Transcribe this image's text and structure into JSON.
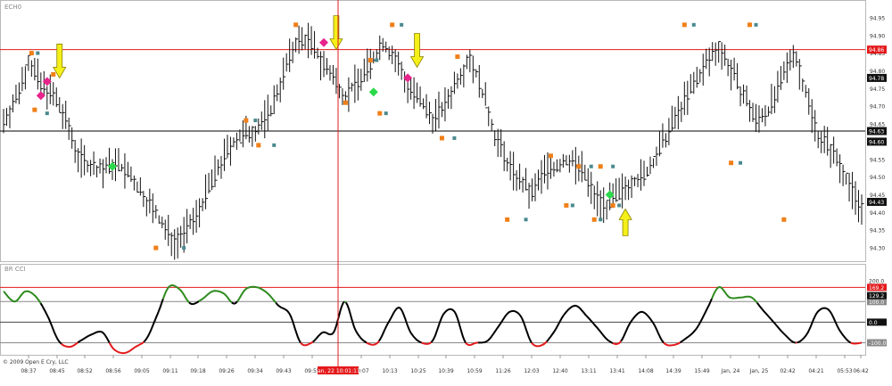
{
  "chart_data": [
    {
      "type": "bar",
      "title": "ECH0",
      "ylim": [
        94.27,
        94.99
      ],
      "y_ticks": [
        94.95,
        94.9,
        94.85,
        94.8,
        94.75,
        94.7,
        94.65,
        94.6,
        94.55,
        94.5,
        94.45,
        94.4,
        94.35,
        94.3
      ],
      "price_labels": [
        {
          "text": "94.86",
          "value": 94.86,
          "style": "red"
        },
        {
          "text": "94.78",
          "value": 94.78,
          "style": "dark"
        },
        {
          "text": "94.63",
          "value": 94.63,
          "style": "dark"
        },
        {
          "text": "94.60",
          "value": 94.6,
          "style": "dark"
        },
        {
          "text": "94.43",
          "value": 94.43,
          "style": "dark"
        }
      ],
      "horizontal_lines": [
        {
          "value": 94.86,
          "color": "#e41a1c"
        },
        {
          "value": 94.63,
          "color": "#000000"
        }
      ],
      "marks_note": "Price bars and marker events are rendered from the series below.",
      "anchors": [
        [
          0,
          94.66
        ],
        [
          4,
          94.72
        ],
        [
          8,
          94.83
        ],
        [
          12,
          94.76
        ],
        [
          16,
          94.73
        ],
        [
          20,
          94.66
        ],
        [
          24,
          94.56
        ],
        [
          28,
          94.53
        ],
        [
          32,
          94.52
        ],
        [
          36,
          94.54
        ],
        [
          40,
          94.51
        ],
        [
          44,
          94.46
        ],
        [
          48,
          94.41
        ],
        [
          52,
          94.35
        ],
        [
          55,
          94.32
        ],
        [
          58,
          94.34
        ],
        [
          62,
          94.39
        ],
        [
          66,
          94.47
        ],
        [
          70,
          94.54
        ],
        [
          74,
          94.6
        ],
        [
          78,
          94.62
        ],
        [
          82,
          94.64
        ],
        [
          86,
          94.69
        ],
        [
          90,
          94.79
        ],
        [
          94,
          94.88
        ],
        [
          98,
          94.89
        ],
        [
          102,
          94.83
        ],
        [
          106,
          94.78
        ],
        [
          110,
          94.73
        ],
        [
          114,
          94.77
        ],
        [
          118,
          94.82
        ],
        [
          122,
          94.88
        ],
        [
          126,
          94.83
        ],
        [
          130,
          94.76
        ],
        [
          134,
          94.71
        ],
        [
          138,
          94.67
        ],
        [
          142,
          94.7
        ],
        [
          146,
          94.78
        ],
        [
          150,
          94.84
        ],
        [
          154,
          94.74
        ],
        [
          158,
          94.62
        ],
        [
          162,
          94.54
        ],
        [
          166,
          94.49
        ],
        [
          170,
          94.45
        ],
        [
          174,
          94.52
        ],
        [
          178,
          94.53
        ],
        [
          182,
          94.55
        ],
        [
          186,
          94.52
        ],
        [
          190,
          94.45
        ],
        [
          194,
          94.42
        ],
        [
          198,
          94.45
        ],
        [
          202,
          94.49
        ],
        [
          206,
          94.5
        ],
        [
          210,
          94.56
        ],
        [
          214,
          94.63
        ],
        [
          218,
          94.7
        ],
        [
          222,
          94.76
        ],
        [
          226,
          94.82
        ],
        [
          230,
          94.87
        ],
        [
          234,
          94.8
        ],
        [
          238,
          94.73
        ],
        [
          242,
          94.66
        ],
        [
          246,
          94.69
        ],
        [
          250,
          94.76
        ],
        [
          254,
          94.86
        ],
        [
          258,
          94.74
        ],
        [
          262,
          94.62
        ],
        [
          266,
          94.58
        ],
        [
          270,
          94.52
        ],
        [
          274,
          94.44
        ],
        [
          276,
          94.42
        ]
      ],
      "events": [
        {
          "bar": 9,
          "kind": "orange-square",
          "value": 94.85
        },
        {
          "bar": 11,
          "kind": "teal-square",
          "value": 94.85
        },
        {
          "bar": 12,
          "kind": "pink-diamond",
          "value": 94.73
        },
        {
          "bar": 10,
          "kind": "orange-square",
          "value": 94.69
        },
        {
          "bar": 14,
          "kind": "teal-square",
          "value": 94.68
        },
        {
          "bar": 14,
          "kind": "pink-diamond",
          "value": 94.77
        },
        {
          "bar": 16,
          "kind": "orange-square",
          "value": 94.79
        },
        {
          "bar": 18,
          "kind": "yellow-arrow-down",
          "value": 94.78
        },
        {
          "bar": 35,
          "kind": "green-diamond",
          "value": 94.53
        },
        {
          "bar": 49,
          "kind": "orange-square",
          "value": 94.3
        },
        {
          "bar": 58,
          "kind": "teal-square",
          "value": 94.3
        },
        {
          "bar": 78,
          "kind": "orange-square",
          "value": 94.66
        },
        {
          "bar": 81,
          "kind": "teal-square",
          "value": 94.66
        },
        {
          "bar": 82,
          "kind": "orange-square",
          "value": 94.59
        },
        {
          "bar": 87,
          "kind": "teal-square",
          "value": 94.59
        },
        {
          "bar": 94,
          "kind": "orange-square",
          "value": 94.93
        },
        {
          "bar": 103,
          "kind": "pink-diamond",
          "value": 94.88
        },
        {
          "bar": 107,
          "kind": "teal-square",
          "value": 94.93
        },
        {
          "bar": 107,
          "kind": "yellow-arrow-down",
          "value": 94.86
        },
        {
          "bar": 110,
          "kind": "orange-square",
          "value": 94.71
        },
        {
          "bar": 118,
          "kind": "orange-square",
          "value": 94.83
        },
        {
          "bar": 120,
          "kind": "teal-square",
          "value": 94.83
        },
        {
          "bar": 119,
          "kind": "green-diamond",
          "value": 94.74
        },
        {
          "bar": 121,
          "kind": "orange-square",
          "value": 94.68
        },
        {
          "bar": 123,
          "kind": "teal-square",
          "value": 94.68
        },
        {
          "bar": 125,
          "kind": "orange-square",
          "value": 94.93
        },
        {
          "bar": 128,
          "kind": "teal-square",
          "value": 94.93
        },
        {
          "bar": 130,
          "kind": "pink-diamond",
          "value": 94.78
        },
        {
          "bar": 133,
          "kind": "yellow-arrow-down",
          "value": 94.81
        },
        {
          "bar": 141,
          "kind": "orange-square",
          "value": 94.61
        },
        {
          "bar": 145,
          "kind": "teal-square",
          "value": 94.61
        },
        {
          "bar": 146,
          "kind": "orange-square",
          "value": 94.84
        },
        {
          "bar": 162,
          "kind": "orange-square",
          "value": 94.38
        },
        {
          "bar": 168,
          "kind": "teal-square",
          "value": 94.38
        },
        {
          "bar": 176,
          "kind": "orange-square",
          "value": 94.56
        },
        {
          "bar": 181,
          "kind": "orange-square",
          "value": 94.42
        },
        {
          "bar": 183,
          "kind": "teal-square",
          "value": 94.42
        },
        {
          "bar": 185,
          "kind": "orange-square",
          "value": 94.53
        },
        {
          "bar": 189,
          "kind": "teal-square",
          "value": 94.53
        },
        {
          "bar": 190,
          "kind": "orange-square",
          "value": 94.38
        },
        {
          "bar": 192,
          "kind": "teal-square",
          "value": 94.38
        },
        {
          "bar": 192,
          "kind": "orange-square",
          "value": 94.53
        },
        {
          "bar": 195,
          "kind": "green-diamond",
          "value": 94.45
        },
        {
          "bar": 196,
          "kind": "teal-square",
          "value": 94.53
        },
        {
          "bar": 196,
          "kind": "orange-square",
          "value": 94.42
        },
        {
          "bar": 198,
          "kind": "teal-square",
          "value": 94.42
        },
        {
          "bar": 200,
          "kind": "yellow-arrow-up",
          "value": 94.41
        },
        {
          "bar": 219,
          "kind": "orange-square",
          "value": 94.93
        },
        {
          "bar": 222,
          "kind": "teal-square",
          "value": 94.93
        },
        {
          "bar": 234,
          "kind": "orange-square",
          "value": 94.54
        },
        {
          "bar": 237,
          "kind": "teal-square",
          "value": 94.54
        },
        {
          "bar": 240,
          "kind": "orange-square",
          "value": 94.93
        },
        {
          "bar": 242,
          "kind": "teal-square",
          "value": 94.93
        },
        {
          "bar": 251,
          "kind": "orange-square",
          "value": 94.38
        }
      ]
    },
    {
      "type": "line",
      "title": "BR CCI",
      "ylim": [
        -150,
        240
      ],
      "y_ticks": [
        {
          "text": "200.0",
          "value": 200
        },
        {
          "text": "100.0",
          "value": 100
        },
        {
          "text": "0.0",
          "value": 0
        },
        {
          "text": "-100.0",
          "value": -100
        }
      ],
      "value_labels": [
        {
          "text": "169.2",
          "value": 169.2,
          "style": "red"
        },
        {
          "text": "129.2",
          "value": 129.2,
          "style": "dark"
        }
      ],
      "level_lines": [
        {
          "value": 169.2,
          "color": "#e41a1c"
        },
        {
          "value": 100,
          "color": "#888888"
        },
        {
          "value": 0,
          "color": "#444444"
        },
        {
          "value": -100,
          "color": "#888888"
        }
      ],
      "colors": {
        "above": "#2e8b1e",
        "below": "#e41a1c",
        "normal": "#000000"
      },
      "anchors": [
        [
          0,
          150
        ],
        [
          4,
          100
        ],
        [
          8,
          150
        ],
        [
          12,
          120
        ],
        [
          16,
          30
        ],
        [
          20,
          -90
        ],
        [
          24,
          -120
        ],
        [
          28,
          -90
        ],
        [
          32,
          -60
        ],
        [
          36,
          -50
        ],
        [
          40,
          -130
        ],
        [
          44,
          -150
        ],
        [
          48,
          -120
        ],
        [
          52,
          -80
        ],
        [
          56,
          40
        ],
        [
          60,
          170
        ],
        [
          64,
          160
        ],
        [
          68,
          90
        ],
        [
          72,
          110
        ],
        [
          76,
          150
        ],
        [
          80,
          140
        ],
        [
          84,
          90
        ],
        [
          88,
          160
        ],
        [
          92,
          170
        ],
        [
          96,
          140
        ],
        [
          100,
          80
        ],
        [
          104,
          40
        ],
        [
          108,
          -100
        ],
        [
          112,
          -100
        ],
        [
          116,
          -50
        ],
        [
          120,
          -50
        ],
        [
          124,
          100
        ],
        [
          128,
          -40
        ],
        [
          132,
          -100
        ],
        [
          136,
          -100
        ],
        [
          140,
          0
        ],
        [
          144,
          70
        ],
        [
          148,
          -50
        ],
        [
          152,
          -100
        ],
        [
          156,
          -90
        ],
        [
          160,
          40
        ],
        [
          164,
          50
        ],
        [
          168,
          -100
        ],
        [
          172,
          -100
        ],
        [
          176,
          -90
        ],
        [
          180,
          -20
        ],
        [
          184,
          50
        ],
        [
          188,
          30
        ],
        [
          192,
          -100
        ],
        [
          196,
          -110
        ],
        [
          200,
          -50
        ],
        [
          204,
          40
        ],
        [
          208,
          80
        ],
        [
          212,
          30
        ],
        [
          216,
          -30
        ],
        [
          220,
          -90
        ],
        [
          224,
          -100
        ],
        [
          228,
          0
        ],
        [
          232,
          50
        ],
        [
          236,
          0
        ],
        [
          240,
          -100
        ],
        [
          244,
          -110
        ],
        [
          248,
          -80
        ],
        [
          252,
          -30
        ],
        [
          256,
          70
        ],
        [
          260,
          170
        ],
        [
          264,
          120
        ],
        [
          268,
          120
        ],
        [
          272,
          120
        ],
        [
          276,
          60
        ],
        [
          280,
          0
        ],
        [
          284,
          -60
        ],
        [
          288,
          -100
        ],
        [
          292,
          -60
        ],
        [
          296,
          50
        ],
        [
          300,
          60
        ],
        [
          304,
          -40
        ],
        [
          308,
          -100
        ],
        [
          312,
          -100
        ]
      ]
    }
  ],
  "x_axis": {
    "ticks": [
      "08:37",
      "08:45",
      "08:52",
      "08:56",
      "09:05",
      "09:11",
      "09:18",
      "09:26",
      "09:34",
      "09:43",
      "09:55",
      "10:07",
      "10:13",
      "10:25",
      "10:39",
      "10:59",
      "11:26",
      "12:03",
      "12:40",
      "13:11",
      "13:41",
      "14:08",
      "14:39",
      "15:49",
      "Jan, 24",
      "Jan, 25",
      "02:42",
      "04:21",
      "05:53",
      "06:42"
    ],
    "cursor_label": "Jan, 22 10:01:11"
  },
  "copyright": "© 2009 Open E Cry, LLC"
}
